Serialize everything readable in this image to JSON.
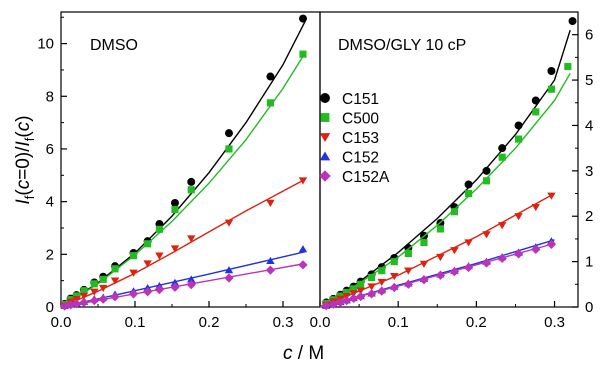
{
  "chart_data": [
    {
      "type": "scatter",
      "panel_label": "DMSO",
      "x_axis_label_italic": "c",
      "x_axis_label_unit": " / M",
      "y_axis_label": "I_f(c=0)/I_f(c)",
      "y_label_parts": [
        "I",
        "f",
        "(",
        "c",
        "=0)/",
        "I",
        "f",
        "(",
        "c",
        ")"
      ],
      "xlim": [
        0.0,
        0.35
      ],
      "ylim": [
        0,
        11.2
      ],
      "x_ticks": [
        0.0,
        0.1,
        0.2,
        0.3
      ],
      "x_tick_labels": [
        "0.0",
        "0.1",
        "0.2",
        "0.3"
      ],
      "y_ticks": [
        0,
        2,
        4,
        6,
        8,
        10
      ],
      "y_tick_labels": [
        "0",
        "2",
        "4",
        "6",
        "8",
        "10"
      ],
      "y_axis_side": "left",
      "series": [
        {
          "name": "C151",
          "marker": "circle",
          "color": "#000000",
          "points": [
            [
              0.005,
              0.12
            ],
            [
              0.013,
              0.32
            ],
            [
              0.021,
              0.45
            ],
            [
              0.031,
              0.65
            ],
            [
              0.045,
              0.93
            ],
            [
              0.057,
              1.15
            ],
            [
              0.073,
              1.55
            ],
            [
              0.098,
              2.05
            ],
            [
              0.117,
              2.5
            ],
            [
              0.133,
              3.15
            ],
            [
              0.154,
              3.95
            ],
            [
              0.176,
              4.75
            ],
            [
              0.227,
              6.6
            ],
            [
              0.283,
              8.75
            ],
            [
              0.327,
              10.95
            ]
          ],
          "fit": [
            [
              0.0,
              0.0
            ],
            [
              0.05,
              0.92
            ],
            [
              0.1,
              2.05
            ],
            [
              0.15,
              3.45
            ],
            [
              0.2,
              5.1
            ],
            [
              0.25,
              7.0
            ],
            [
              0.3,
              9.2
            ],
            [
              0.33,
              10.85
            ]
          ]
        },
        {
          "name": "C500",
          "marker": "square",
          "color": "#22bb22",
          "points": [
            [
              0.005,
              0.1
            ],
            [
              0.013,
              0.28
            ],
            [
              0.021,
              0.42
            ],
            [
              0.031,
              0.62
            ],
            [
              0.045,
              0.88
            ],
            [
              0.057,
              1.05
            ],
            [
              0.073,
              1.45
            ],
            [
              0.098,
              1.95
            ],
            [
              0.117,
              2.4
            ],
            [
              0.133,
              2.95
            ],
            [
              0.154,
              3.7
            ],
            [
              0.176,
              4.45
            ],
            [
              0.227,
              6.0
            ],
            [
              0.283,
              7.75
            ],
            [
              0.327,
              9.6
            ]
          ],
          "fit": [
            [
              0.0,
              0.0
            ],
            [
              0.05,
              0.88
            ],
            [
              0.1,
              1.98
            ],
            [
              0.15,
              3.25
            ],
            [
              0.2,
              4.7
            ],
            [
              0.25,
              6.35
            ],
            [
              0.3,
              8.3
            ],
            [
              0.33,
              9.65
            ]
          ]
        },
        {
          "name": "C153",
          "marker": "triangle-down",
          "color": "#dd2211",
          "points": [
            [
              0.005,
              0.05
            ],
            [
              0.013,
              0.2
            ],
            [
              0.021,
              0.3
            ],
            [
              0.031,
              0.42
            ],
            [
              0.045,
              0.58
            ],
            [
              0.057,
              0.72
            ],
            [
              0.073,
              1.0
            ],
            [
              0.098,
              1.3
            ],
            [
              0.117,
              1.65
            ],
            [
              0.133,
              1.95
            ],
            [
              0.154,
              2.22
            ],
            [
              0.176,
              2.6
            ],
            [
              0.227,
              3.2
            ],
            [
              0.283,
              3.95
            ],
            [
              0.327,
              4.8
            ]
          ],
          "fit": [
            [
              0.0,
              0.0
            ],
            [
              0.05,
              0.6
            ],
            [
              0.1,
              1.28
            ],
            [
              0.15,
              2.05
            ],
            [
              0.2,
              2.85
            ],
            [
              0.25,
              3.65
            ],
            [
              0.3,
              4.4
            ],
            [
              0.33,
              4.85
            ]
          ]
        },
        {
          "name": "C152",
          "marker": "triangle-up",
          "color": "#2233dd",
          "points": [
            [
              0.005,
              0.05
            ],
            [
              0.013,
              0.1
            ],
            [
              0.021,
              0.15
            ],
            [
              0.031,
              0.2
            ],
            [
              0.045,
              0.3
            ],
            [
              0.057,
              0.36
            ],
            [
              0.073,
              0.48
            ],
            [
              0.098,
              0.6
            ],
            [
              0.117,
              0.72
            ],
            [
              0.133,
              0.8
            ],
            [
              0.154,
              0.92
            ],
            [
              0.176,
              1.05
            ],
            [
              0.227,
              1.4
            ],
            [
              0.283,
              1.75
            ],
            [
              0.327,
              2.2
            ]
          ],
          "fit": [
            [
              0.0,
              0.0
            ],
            [
              0.1,
              0.62
            ],
            [
              0.2,
              1.25
            ],
            [
              0.33,
              2.1
            ]
          ]
        },
        {
          "name": "C152A",
          "marker": "diamond",
          "color": "#bb33bb",
          "points": [
            [
              0.005,
              0.04
            ],
            [
              0.013,
              0.08
            ],
            [
              0.021,
              0.12
            ],
            [
              0.031,
              0.17
            ],
            [
              0.045,
              0.24
            ],
            [
              0.057,
              0.3
            ],
            [
              0.073,
              0.39
            ],
            [
              0.098,
              0.5
            ],
            [
              0.117,
              0.58
            ],
            [
              0.133,
              0.66
            ],
            [
              0.154,
              0.75
            ],
            [
              0.176,
              0.85
            ],
            [
              0.227,
              1.1
            ],
            [
              0.283,
              1.4
            ],
            [
              0.327,
              1.6
            ]
          ],
          "fit": [
            [
              0.0,
              0.0
            ],
            [
              0.1,
              0.5
            ],
            [
              0.2,
              1.0
            ],
            [
              0.33,
              1.65
            ]
          ]
        }
      ]
    },
    {
      "type": "scatter",
      "panel_label": "DMSO/GLY 10 cP",
      "xlim": [
        0.0,
        0.33
      ],
      "ylim": [
        0,
        6.5
      ],
      "x_ticks": [
        0.0,
        0.1,
        0.2,
        0.3
      ],
      "x_tick_labels": [
        "0.0",
        "0.1",
        "0.2",
        "0.3"
      ],
      "y_ticks": [
        0,
        1,
        2,
        3,
        4,
        5,
        6
      ],
      "y_tick_labels": [
        "0",
        "1",
        "2",
        "3",
        "4",
        "5",
        "6"
      ],
      "y_axis_side": "right",
      "series": [
        {
          "name": "C151",
          "marker": "circle",
          "color": "#000000",
          "points": [
            [
              0.008,
              0.1
            ],
            [
              0.017,
              0.18
            ],
            [
              0.026,
              0.27
            ],
            [
              0.034,
              0.36
            ],
            [
              0.043,
              0.45
            ],
            [
              0.052,
              0.56
            ],
            [
              0.066,
              0.72
            ],
            [
              0.079,
              0.88
            ],
            [
              0.095,
              1.08
            ],
            [
              0.113,
              1.3
            ],
            [
              0.133,
              1.57
            ],
            [
              0.154,
              1.85
            ],
            [
              0.172,
              2.2
            ],
            [
              0.19,
              2.7
            ],
            [
              0.213,
              3.0
            ],
            [
              0.233,
              3.5
            ],
            [
              0.254,
              4.0
            ],
            [
              0.276,
              4.55
            ],
            [
              0.296,
              5.2
            ],
            [
              0.323,
              6.3
            ]
          ],
          "fit": [
            [
              0.0,
              0.0
            ],
            [
              0.05,
              0.55
            ],
            [
              0.1,
              1.2
            ],
            [
              0.15,
              1.95
            ],
            [
              0.2,
              2.8
            ],
            [
              0.25,
              3.8
            ],
            [
              0.3,
              5.0
            ],
            [
              0.32,
              6.1
            ]
          ]
        },
        {
          "name": "C500",
          "marker": "square",
          "color": "#22bb22",
          "points": [
            [
              0.008,
              0.08
            ],
            [
              0.017,
              0.16
            ],
            [
              0.026,
              0.24
            ],
            [
              0.034,
              0.32
            ],
            [
              0.043,
              0.4
            ],
            [
              0.052,
              0.5
            ],
            [
              0.066,
              0.65
            ],
            [
              0.079,
              0.8
            ],
            [
              0.095,
              1.0
            ],
            [
              0.113,
              1.18
            ],
            [
              0.133,
              1.42
            ],
            [
              0.154,
              1.72
            ],
            [
              0.172,
              2.1
            ],
            [
              0.19,
              2.5
            ],
            [
              0.213,
              2.78
            ],
            [
              0.233,
              3.3
            ],
            [
              0.254,
              3.7
            ],
            [
              0.276,
              4.3
            ],
            [
              0.296,
              4.8
            ],
            [
              0.317,
              5.3
            ]
          ],
          "fit": [
            [
              0.0,
              0.0
            ],
            [
              0.05,
              0.52
            ],
            [
              0.1,
              1.1
            ],
            [
              0.15,
              1.8
            ],
            [
              0.2,
              2.6
            ],
            [
              0.25,
              3.5
            ],
            [
              0.3,
              4.55
            ],
            [
              0.32,
              5.15
            ]
          ]
        },
        {
          "name": "C153",
          "marker": "triangle-down",
          "color": "#dd2211",
          "points": [
            [
              0.008,
              0.05
            ],
            [
              0.017,
              0.12
            ],
            [
              0.026,
              0.18
            ],
            [
              0.034,
              0.24
            ],
            [
              0.043,
              0.3
            ],
            [
              0.052,
              0.36
            ],
            [
              0.066,
              0.45
            ],
            [
              0.079,
              0.55
            ],
            [
              0.095,
              0.68
            ],
            [
              0.113,
              0.8
            ],
            [
              0.133,
              0.95
            ],
            [
              0.154,
              1.1
            ],
            [
              0.172,
              1.25
            ],
            [
              0.19,
              1.42
            ],
            [
              0.213,
              1.6
            ],
            [
              0.233,
              1.8
            ],
            [
              0.254,
              2.0
            ],
            [
              0.276,
              2.2
            ],
            [
              0.296,
              2.45
            ]
          ],
          "fit": [
            [
              0.0,
              0.0
            ],
            [
              0.1,
              0.7
            ],
            [
              0.2,
              1.55
            ],
            [
              0.3,
              2.5
            ]
          ]
        },
        {
          "name": "C152",
          "marker": "triangle-up",
          "color": "#2233dd",
          "points": [
            [
              0.008,
              0.03
            ],
            [
              0.017,
              0.07
            ],
            [
              0.026,
              0.11
            ],
            [
              0.034,
              0.15
            ],
            [
              0.043,
              0.2
            ],
            [
              0.052,
              0.24
            ],
            [
              0.066,
              0.3
            ],
            [
              0.079,
              0.37
            ],
            [
              0.095,
              0.45
            ],
            [
              0.113,
              0.52
            ],
            [
              0.133,
              0.62
            ],
            [
              0.154,
              0.72
            ],
            [
              0.172,
              0.8
            ],
            [
              0.19,
              0.9
            ],
            [
              0.213,
              1.0
            ],
            [
              0.233,
              1.1
            ],
            [
              0.254,
              1.2
            ],
            [
              0.276,
              1.32
            ],
            [
              0.296,
              1.45
            ]
          ],
          "fit": [
            [
              0.0,
              0.0
            ],
            [
              0.1,
              0.48
            ],
            [
              0.2,
              0.96
            ],
            [
              0.3,
              1.48
            ]
          ]
        },
        {
          "name": "C152A",
          "marker": "diamond",
          "color": "#bb33bb",
          "points": [
            [
              0.008,
              0.03
            ],
            [
              0.017,
              0.06
            ],
            [
              0.026,
              0.1
            ],
            [
              0.034,
              0.14
            ],
            [
              0.043,
              0.19
            ],
            [
              0.052,
              0.23
            ],
            [
              0.066,
              0.29
            ],
            [
              0.079,
              0.35
            ],
            [
              0.095,
              0.43
            ],
            [
              0.113,
              0.5
            ],
            [
              0.133,
              0.6
            ],
            [
              0.154,
              0.7
            ],
            [
              0.172,
              0.78
            ],
            [
              0.19,
              0.87
            ],
            [
              0.213,
              0.97
            ],
            [
              0.233,
              1.07
            ],
            [
              0.254,
              1.17
            ],
            [
              0.276,
              1.27
            ],
            [
              0.296,
              1.38
            ]
          ],
          "fit": [
            [
              0.0,
              0.0
            ],
            [
              0.1,
              0.46
            ],
            [
              0.2,
              0.93
            ],
            [
              0.3,
              1.4
            ]
          ]
        }
      ]
    }
  ],
  "legend": {
    "placement": "center, between the two panels",
    "entries": [
      {
        "label": "C151",
        "marker": "circle",
        "color": "#000000"
      },
      {
        "label": "C500",
        "marker": "square",
        "color": "#22bb22"
      },
      {
        "label": "C153",
        "marker": "triangle-down",
        "color": "#dd2211"
      },
      {
        "label": "C152",
        "marker": "triangle-up",
        "color": "#2233dd"
      },
      {
        "label": "C152A",
        "marker": "diamond",
        "color": "#bb33bb"
      }
    ]
  }
}
